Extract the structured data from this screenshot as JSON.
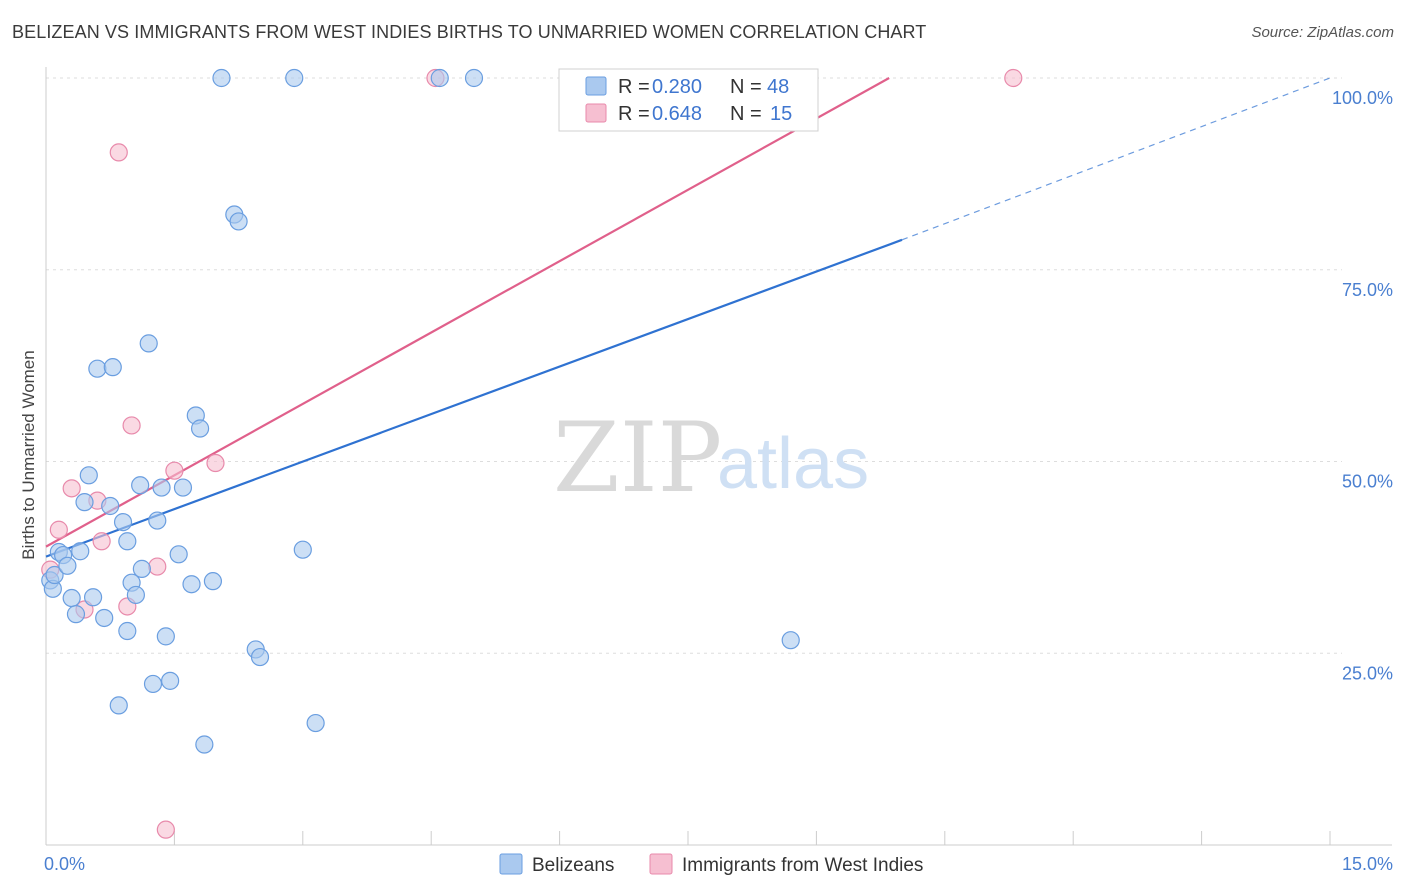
{
  "title": "BELIZEAN VS IMMIGRANTS FROM WEST INDIES BIRTHS TO UNMARRIED WOMEN CORRELATION CHART",
  "source": "Source: ZipAtlas.com",
  "watermark": {
    "zip": "ZIP",
    "atlas": "atlas"
  },
  "colors": {
    "blue_fill": "#aac9ef",
    "blue_stroke": "#6a9ee0",
    "blue_line": "#2f72d1",
    "pink_fill": "#f6bfd1",
    "pink_stroke": "#e88aab",
    "pink_line": "#e0608b",
    "grid": "#dddddd",
    "tick_text": "#4a7fd0"
  },
  "chart_data": {
    "type": "scatter",
    "title": "BELIZEAN VS IMMIGRANTS FROM WEST INDIES BIRTHS TO UNMARRIED WOMEN CORRELATION CHART",
    "xlabel": "",
    "ylabel": "Births to Unmarried Women",
    "xlim": [
      0,
      15
    ],
    "ylim": [
      0,
      100
    ],
    "x_tick_labels": [
      "0.0%",
      "15.0%"
    ],
    "y_tick_labels": [
      "25.0%",
      "50.0%",
      "75.0%",
      "100.0%"
    ],
    "y_ticks": [
      25,
      50,
      75,
      100
    ],
    "grid": true,
    "legend": {
      "placement": "top-center",
      "entries": [
        {
          "r_label": "R =",
          "r": "0.280",
          "n_label": "N =",
          "n": "48"
        },
        {
          "r_label": "R =",
          "r": "0.648",
          "n_label": "N =",
          "n": "15"
        }
      ]
    },
    "series": [
      {
        "name": "Belizeans",
        "color": "#aac9ef",
        "trend": {
          "x0": 0,
          "y0": 37.6,
          "x1": 10.0,
          "y1": 78.9,
          "dash_to_x": 15.0,
          "dash_to_y": 100.0
        },
        "points": [
          [
            0.05,
            34.5
          ],
          [
            0.08,
            33.4
          ],
          [
            0.1,
            35.2
          ],
          [
            0.15,
            38.2
          ],
          [
            0.2,
            37.8
          ],
          [
            0.25,
            36.4
          ],
          [
            0.3,
            32.2
          ],
          [
            0.35,
            30.1
          ],
          [
            0.4,
            38.3
          ],
          [
            0.45,
            44.7
          ],
          [
            0.5,
            48.2
          ],
          [
            0.55,
            32.3
          ],
          [
            0.6,
            62.1
          ],
          [
            0.68,
            29.6
          ],
          [
            0.75,
            44.2
          ],
          [
            0.78,
            62.3
          ],
          [
            0.85,
            18.2
          ],
          [
            0.9,
            42.1
          ],
          [
            0.95,
            27.9
          ],
          [
            0.95,
            39.6
          ],
          [
            1.0,
            34.2
          ],
          [
            1.05,
            32.6
          ],
          [
            1.1,
            46.9
          ],
          [
            1.12,
            36.0
          ],
          [
            1.2,
            65.4
          ],
          [
            1.25,
            21.0
          ],
          [
            1.3,
            42.3
          ],
          [
            1.35,
            46.6
          ],
          [
            1.4,
            27.2
          ],
          [
            1.45,
            21.4
          ],
          [
            1.55,
            37.9
          ],
          [
            1.6,
            46.6
          ],
          [
            1.7,
            34.0
          ],
          [
            1.75,
            56.0
          ],
          [
            1.8,
            54.3
          ],
          [
            1.85,
            13.1
          ],
          [
            1.95,
            34.4
          ],
          [
            2.05,
            100.0
          ],
          [
            2.2,
            82.2
          ],
          [
            2.25,
            81.3
          ],
          [
            2.45,
            25.5
          ],
          [
            2.5,
            24.5
          ],
          [
            2.9,
            100.0
          ],
          [
            3.0,
            38.5
          ],
          [
            3.15,
            15.9
          ],
          [
            4.6,
            100.0
          ],
          [
            5.0,
            100.0
          ],
          [
            8.7,
            26.7
          ]
        ]
      },
      {
        "name": "Immigrants from West Indies",
        "color": "#f6bfd1",
        "trend": {
          "x0": 0,
          "y0": 38.9,
          "x1": 9.85,
          "y1": 100.0
        },
        "points": [
          [
            0.05,
            35.9
          ],
          [
            0.15,
            41.1
          ],
          [
            0.3,
            46.5
          ],
          [
            0.45,
            30.7
          ],
          [
            0.6,
            44.9
          ],
          [
            0.65,
            39.6
          ],
          [
            0.85,
            90.3
          ],
          [
            0.95,
            31.1
          ],
          [
            1.0,
            54.7
          ],
          [
            1.3,
            36.3
          ],
          [
            1.4,
            2.0
          ],
          [
            1.5,
            48.8
          ],
          [
            1.98,
            49.8
          ],
          [
            4.55,
            100.0
          ],
          [
            11.3,
            100.0
          ]
        ]
      }
    ]
  }
}
